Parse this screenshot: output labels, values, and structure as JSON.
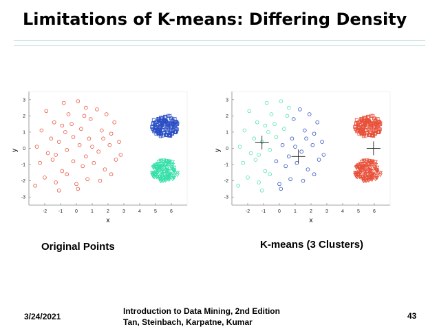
{
  "slide": {
    "title": "Limitations of K-means: Differing Density",
    "left_caption": "Original Points",
    "right_caption": "K-means (3 Clusters)",
    "footer_date": "3/24/2021",
    "footer_book_line1": "Introduction to Data Mining, 2nd Edition",
    "footer_book_line2": "Tan, Steinbach, Karpatne, Kumar",
    "page_number": "43"
  },
  "chart_data": [
    {
      "type": "scatter",
      "title": "Original Points",
      "xlabel": "x",
      "ylabel": "y",
      "xlim": [
        -3,
        7
      ],
      "ylim": [
        -3.5,
        3.5
      ],
      "xticks": [
        -2,
        -1,
        0,
        1,
        2,
        3,
        4,
        5,
        6
      ],
      "yticks": [
        -3,
        -2,
        -1,
        0,
        1,
        2,
        3
      ],
      "series": [
        {
          "name": "sparse cluster",
          "color": "#e8513a",
          "marker": "circle",
          "points": [
            [
              -1.9,
              2.3
            ],
            [
              -1.4,
              1.6
            ],
            [
              -0.8,
              2.8
            ],
            [
              -0.5,
              2.1
            ],
            [
              0.1,
              2.9
            ],
            [
              0.6,
              2.5
            ],
            [
              1.3,
              2.4
            ],
            [
              1.9,
              2.1
            ],
            [
              -2.2,
              1.1
            ],
            [
              -1.6,
              0.6
            ],
            [
              -0.9,
              1.4
            ],
            [
              -0.3,
              1.5
            ],
            [
              0.3,
              1.2
            ],
            [
              0.9,
              1.8
            ],
            [
              1.6,
              1.1
            ],
            [
              2.2,
              0.9
            ],
            [
              2.7,
              0.4
            ],
            [
              -2.5,
              0.1
            ],
            [
              -1.8,
              -0.3
            ],
            [
              -1.1,
              0.4
            ],
            [
              -0.6,
              -0.1
            ],
            [
              0.2,
              0.2
            ],
            [
              0.8,
              0.6
            ],
            [
              1.4,
              -0.2
            ],
            [
              2.1,
              0.2
            ],
            [
              2.8,
              -0.4
            ],
            [
              -2.3,
              -0.9
            ],
            [
              -1.5,
              -0.7
            ],
            [
              -0.9,
              -1.4
            ],
            [
              -0.2,
              -0.8
            ],
            [
              0.4,
              -1.1
            ],
            [
              1.1,
              -0.9
            ],
            [
              1.8,
              -1.3
            ],
            [
              2.5,
              -0.7
            ],
            [
              -2.0,
              -1.8
            ],
            [
              -1.3,
              -2.1
            ],
            [
              -0.6,
              -1.6
            ],
            [
              0.0,
              -2.2
            ],
            [
              0.7,
              -1.9
            ],
            [
              1.5,
              -2.0
            ],
            [
              2.2,
              -1.6
            ],
            [
              -1.1,
              -2.6
            ],
            [
              0.1,
              -2.5
            ],
            [
              -2.6,
              -2.3
            ],
            [
              0.5,
              2.0
            ],
            [
              -0.2,
              0.7
            ],
            [
              1.0,
              0.1
            ],
            [
              -1.3,
              -0.4
            ],
            [
              0.6,
              -0.5
            ],
            [
              1.7,
              0.6
            ],
            [
              -0.7,
              1.0
            ],
            [
              2.4,
              1.6
            ]
          ]
        },
        {
          "name": "dense cluster (upper)",
          "color": "#2b4fc4",
          "marker": "square",
          "center": [
            5.6,
            1.4
          ],
          "radius": 0.85,
          "count": 150
        },
        {
          "name": "dense cluster (lower)",
          "color": "#36e0a8",
          "marker": "triangle",
          "center": [
            5.6,
            -1.4
          ],
          "radius": 0.85,
          "count": 150
        }
      ]
    },
    {
      "type": "scatter",
      "title": "K-means (3 Clusters)",
      "xlabel": "x",
      "ylabel": "y",
      "xlim": [
        -3,
        7
      ],
      "ylim": [
        -3.5,
        3.5
      ],
      "xticks": [
        -2,
        -1,
        0,
        1,
        2,
        3,
        4,
        5,
        6
      ],
      "yticks": [
        -3,
        -2,
        -1,
        0,
        1,
        2,
        3
      ],
      "series": [
        {
          "name": "cluster 1 (left part of sparse)",
          "color": "#4fe3b0",
          "marker": "circle"
        },
        {
          "name": "cluster 2 (right part of sparse)",
          "color": "#2b4fc4",
          "marker": "circle"
        },
        {
          "name": "cluster 3 (both dense groups)",
          "color": "#e8513a",
          "marker": "square/triangle"
        }
      ],
      "centroids": [
        [
          -1.1,
          0.35
        ],
        [
          1.2,
          -0.5
        ],
        [
          5.95,
          0.0
        ]
      ]
    }
  ]
}
